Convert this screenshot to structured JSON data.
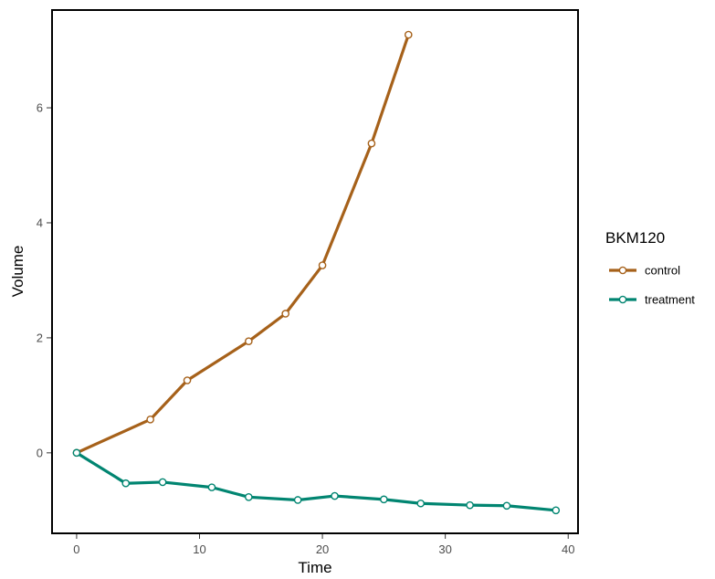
{
  "chart_data": {
    "type": "line",
    "xlabel": "Time",
    "ylabel": "Volume",
    "xlim": [
      -2,
      40.8
    ],
    "ylim": [
      -1.4,
      7.7
    ],
    "xticks": [
      0,
      10,
      20,
      30,
      40
    ],
    "yticks": [
      0,
      2,
      4,
      6
    ],
    "grid": false,
    "legend": {
      "title": "BKM120",
      "position": "right"
    },
    "series": [
      {
        "name": "control",
        "color": "#A6611A",
        "points": [
          {
            "x": 0,
            "y": 0.0
          },
          {
            "x": 6,
            "y": 0.58
          },
          {
            "x": 9,
            "y": 1.26
          },
          {
            "x": 14,
            "y": 1.94
          },
          {
            "x": 17,
            "y": 2.42
          },
          {
            "x": 20,
            "y": 3.26
          },
          {
            "x": 24,
            "y": 5.38
          },
          {
            "x": 27,
            "y": 7.27
          }
        ]
      },
      {
        "name": "treatment",
        "color": "#018571",
        "points": [
          {
            "x": 0,
            "y": 0.0
          },
          {
            "x": 4,
            "y": -0.53
          },
          {
            "x": 7,
            "y": -0.51
          },
          {
            "x": 11,
            "y": -0.6
          },
          {
            "x": 14,
            "y": -0.77
          },
          {
            "x": 18,
            "y": -0.82
          },
          {
            "x": 21,
            "y": -0.75
          },
          {
            "x": 25,
            "y": -0.81
          },
          {
            "x": 28,
            "y": -0.88
          },
          {
            "x": 32,
            "y": -0.91
          },
          {
            "x": 35,
            "y": -0.92
          },
          {
            "x": 39,
            "y": -1.0
          }
        ]
      }
    ]
  }
}
